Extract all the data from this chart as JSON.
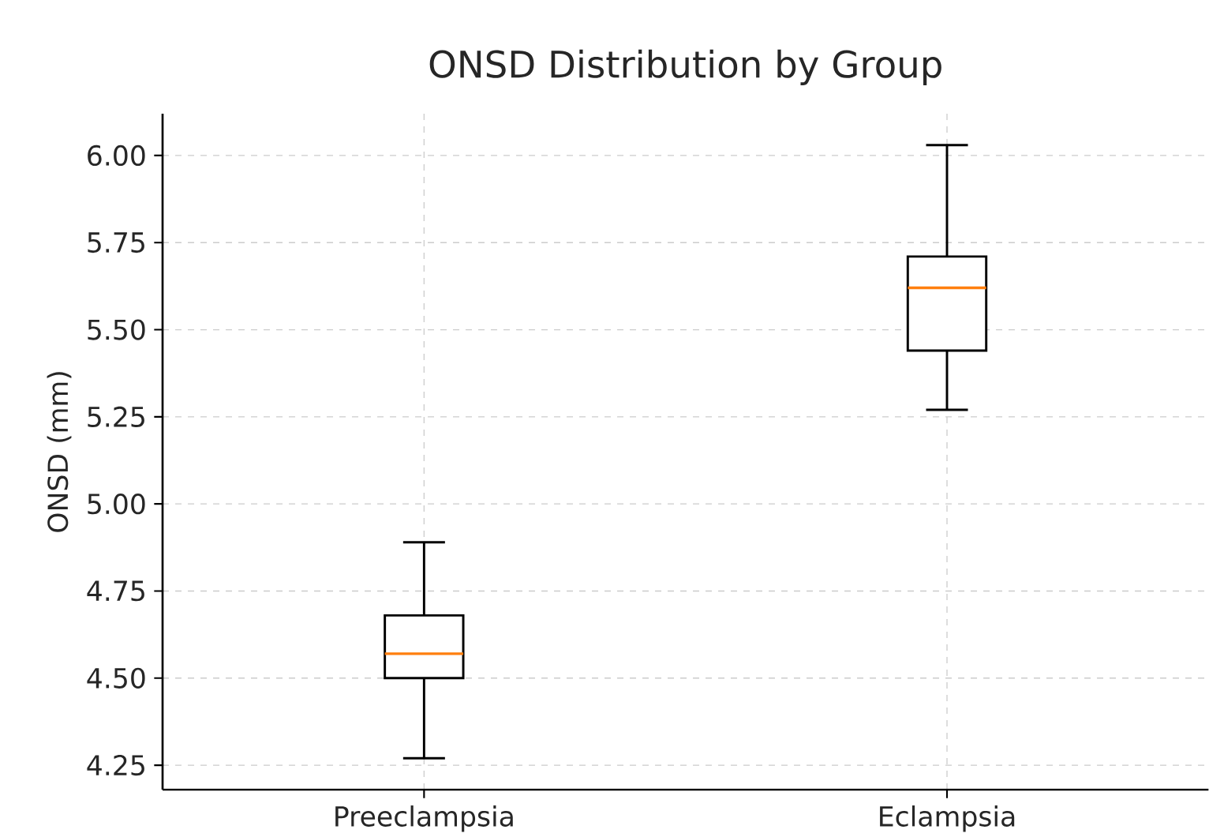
{
  "chart_data": {
    "type": "box",
    "title": "ONSD Distribution by Group",
    "ylabel": "ONSD (mm)",
    "categories": [
      "Preeclampsia",
      "Eclampsia"
    ],
    "boxes": [
      {
        "low": 4.27,
        "q1": 4.5,
        "median": 4.57,
        "q3": 4.68,
        "high": 4.89
      },
      {
        "low": 5.27,
        "q1": 5.44,
        "median": 5.62,
        "q3": 5.71,
        "high": 6.03
      }
    ],
    "ylim": [
      4.18,
      6.12
    ],
    "yticks": [
      {
        "value": 4.25,
        "label": "4.25"
      },
      {
        "value": 4.5,
        "label": "4.50"
      },
      {
        "value": 4.75,
        "label": "4.75"
      },
      {
        "value": 5,
        "label": "5.00"
      },
      {
        "value": 5.25,
        "label": "5.25"
      },
      {
        "value": 5.5,
        "label": "5.50"
      },
      {
        "value": 5.75,
        "label": "5.75"
      },
      {
        "value": 6,
        "label": "6.00"
      }
    ],
    "grid": true
  }
}
